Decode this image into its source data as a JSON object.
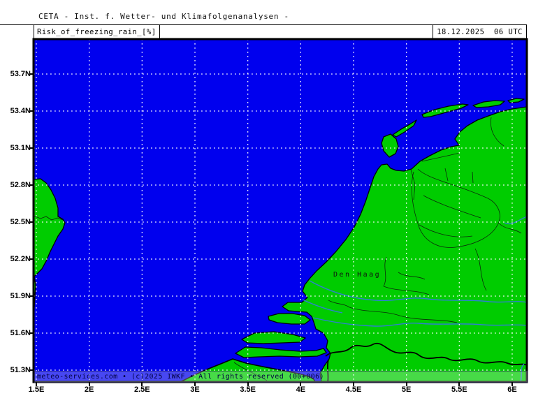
{
  "header": {
    "institute_line": "CETA - Inst. f. Wetter- und Klimafolgenanalysen -"
  },
  "title_box": {
    "label": "Risk_of_freezing_rain_[%]"
  },
  "datetime_box": {
    "label": "18.12.2025  06 UTC"
  },
  "map": {
    "region": "Netherlands / southern North Sea",
    "city_labels": [
      {
        "name": "Den Haag"
      }
    ],
    "copyright": "meteo-services.com • (c)2025 IWKF • All rights reserved (00+006)"
  },
  "axes": {
    "lat_ticks": [
      {
        "label": "53.7N",
        "lat": 53.7
      },
      {
        "label": "53.4N",
        "lat": 53.4
      },
      {
        "label": "53.1N",
        "lat": 53.1
      },
      {
        "label": "52.8N",
        "lat": 52.8
      },
      {
        "label": "52.5N",
        "lat": 52.5
      },
      {
        "label": "52.2N",
        "lat": 52.2
      },
      {
        "label": "51.9N",
        "lat": 51.9
      },
      {
        "label": "51.6N",
        "lat": 51.6
      },
      {
        "label": "51.3N",
        "lat": 51.3
      }
    ],
    "lon_ticks": [
      {
        "label": "1.5E",
        "lon": 1.5
      },
      {
        "label": "2E",
        "lon": 2.0
      },
      {
        "label": "2.5E",
        "lon": 2.5
      },
      {
        "label": "3E",
        "lon": 3.0
      },
      {
        "label": "3.5E",
        "lon": 3.5
      },
      {
        "label": "4E",
        "lon": 4.0
      },
      {
        "label": "4.5E",
        "lon": 4.5
      },
      {
        "label": "5E",
        "lon": 5.0
      },
      {
        "label": "5.5E",
        "lon": 5.5
      },
      {
        "label": "6E",
        "lon": 6.0
      }
    ]
  },
  "colors": {
    "sea": "#0000ee",
    "land": "#00cc00",
    "coastline": "#000000",
    "gridline": "#ffffff",
    "river": "#2f7fd0",
    "copyright_text": "#000040"
  }
}
